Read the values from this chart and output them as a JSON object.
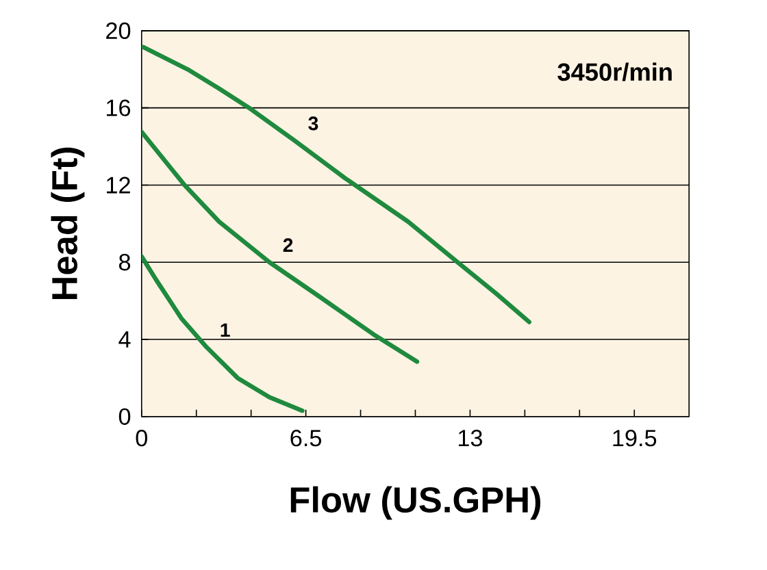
{
  "chart_data": {
    "type": "line",
    "xlabel": "Flow (US.GPH)",
    "ylabel": "Head (Ft)",
    "xlim": [
      0,
      21.6667
    ],
    "ylim": [
      0,
      20
    ],
    "xticks": [
      0,
      {
        "value": 2.1667,
        "label": null
      },
      {
        "value": 4.3333,
        "label": null
      },
      6.5,
      {
        "value": 8.6667,
        "label": null
      },
      {
        "value": 10.8333,
        "label": null
      },
      13,
      {
        "value": 15.1667,
        "label": null
      },
      {
        "value": 17.3333,
        "label": null
      },
      19.5
    ],
    "yticks": [
      0,
      4,
      8,
      12,
      16,
      20
    ],
    "grid": "y",
    "marker": "none",
    "line_style": "solid",
    "annotations": [
      "3450r/min"
    ],
    "series": [
      {
        "name": "1",
        "color": "#1f8a3e",
        "x": [
          0,
          0.57,
          1.57,
          2.57,
          3.8,
          5.06,
          6.36
        ],
        "values": [
          8.3,
          7.1,
          5.1,
          3.6,
          2.0,
          1.0,
          0.3
        ]
      },
      {
        "name": "2",
        "color": "#1f8a3e",
        "x": [
          0,
          1.7,
          3.07,
          5.06,
          7.06,
          9.18,
          10.9
        ],
        "values": [
          14.75,
          12.0,
          10.1,
          8.0,
          6.2,
          4.26,
          2.85
        ]
      },
      {
        "name": "3",
        "color": "#1f8a3e",
        "x": [
          0.07,
          1.82,
          3.07,
          4.31,
          6.06,
          8.05,
          10.55,
          12.54,
          14.04,
          15.34
        ],
        "values": [
          19.15,
          18.0,
          17.0,
          15.95,
          14.3,
          12.36,
          10.1,
          7.96,
          6.37,
          4.9
        ]
      }
    ]
  }
}
